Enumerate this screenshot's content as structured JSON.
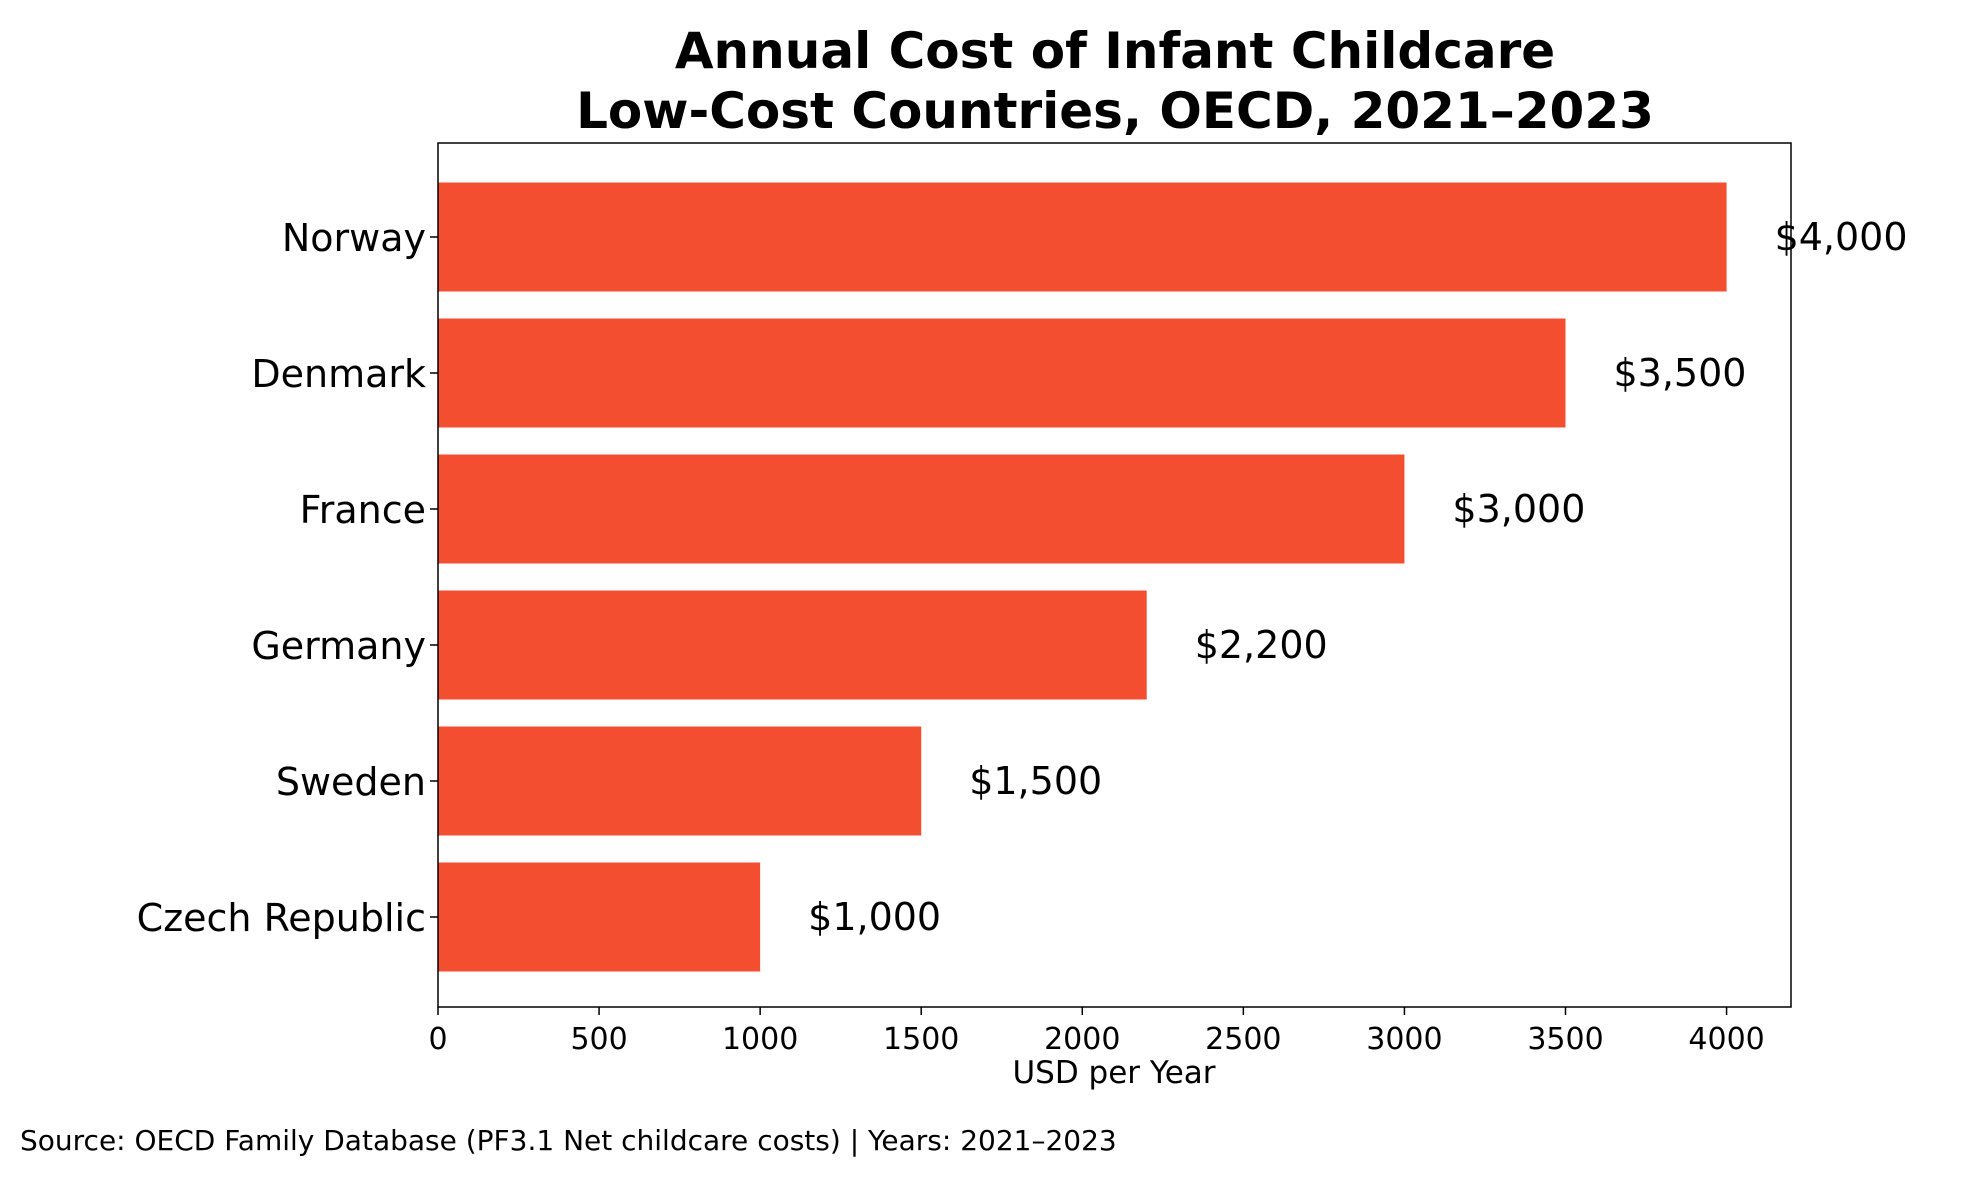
{
  "chart_data": {
    "type": "bar",
    "orientation": "horizontal",
    "title_lines": [
      "Annual Cost of Infant Childcare",
      "Low-Cost Countries, OECD, 2021–2023"
    ],
    "categories": [
      "Norway",
      "Denmark",
      "France",
      "Germany",
      "Sweden",
      "Czech Republic"
    ],
    "values": [
      4000,
      3500,
      3000,
      2200,
      1500,
      1000
    ],
    "data_labels": [
      "$4,000",
      "$3,500",
      "$3,000",
      "$2,200",
      "$1,500",
      "$1,000"
    ],
    "xlabel": "USD per Year",
    "ylabel": "",
    "xlim": [
      0,
      4200
    ],
    "xticks": [
      0,
      500,
      1000,
      1500,
      2000,
      2500,
      3000,
      3500,
      4000
    ],
    "xtick_labels": [
      "0",
      "500",
      "1000",
      "1500",
      "2000",
      "2500",
      "3000",
      "3500",
      "4000"
    ],
    "bar_color": "#f44e30",
    "grid": false,
    "legend": "none"
  },
  "source_note": "Source: OECD Family Database (PF3.1 Net childcare costs) | Years: 2021–2023"
}
